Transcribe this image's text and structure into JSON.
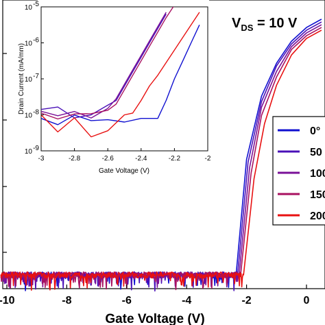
{
  "chart_data": [
    {
      "type": "line",
      "panel": "main",
      "xlabel": "Gate Voltage (V)",
      "ylabel": "",
      "xlim": [
        -10,
        0.6
      ],
      "x_ticks": [
        "-10",
        "-8",
        "-6",
        "-4",
        "-2",
        "0"
      ],
      "x_tick_values": [
        -10,
        -8,
        -6,
        -4,
        -2,
        0
      ],
      "annotation": {
        "main": "V",
        "sub": "DS",
        "rest": " = 10 V"
      },
      "legend": {
        "placement": "right",
        "entries": [
          {
            "label": "0°",
            "color": "#1010d0"
          },
          {
            "label": "50",
            "color": "#4a10b8"
          },
          {
            "label": "100",
            "color": "#7a1098"
          },
          {
            "label": "150",
            "color": "#a81060"
          },
          {
            "label": "200",
            "color": "#e81010"
          }
        ]
      },
      "series": [
        {
          "color": "#1010d0",
          "threshold": -2.35,
          "noise_floor": 0.0,
          "x": [
            -10,
            -3,
            -2.6,
            -2.35,
            -2.0,
            -1.5,
            -1.0,
            -0.5,
            0,
            0.5
          ],
          "y_rel": [
            0.03,
            0.03,
            0.03,
            0.03,
            0.45,
            0.68,
            0.8,
            0.88,
            0.93,
            0.96
          ]
        },
        {
          "color": "#4a10b8",
          "threshold": -2.3,
          "x": [
            -10,
            -3,
            -2.6,
            -2.3,
            -1.95,
            -1.5,
            -1.0,
            -0.5,
            0,
            0.5
          ],
          "y_rel": [
            0.03,
            0.03,
            0.03,
            0.03,
            0.44,
            0.66,
            0.79,
            0.87,
            0.92,
            0.95
          ]
        },
        {
          "color": "#7a1098",
          "threshold": -2.25,
          "x": [
            -10,
            -3,
            -2.6,
            -2.25,
            -1.9,
            -1.5,
            -1.0,
            -0.5,
            0,
            0.5
          ],
          "y_rel": [
            0.03,
            0.03,
            0.03,
            0.03,
            0.42,
            0.64,
            0.77,
            0.86,
            0.91,
            0.94
          ]
        },
        {
          "color": "#a81060",
          "threshold": -2.2,
          "x": [
            -10,
            -3,
            -2.6,
            -2.2,
            -1.85,
            -1.5,
            -1.0,
            -0.5,
            0,
            0.5
          ],
          "y_rel": [
            0.03,
            0.03,
            0.03,
            0.03,
            0.4,
            0.61,
            0.75,
            0.85,
            0.9,
            0.93
          ]
        },
        {
          "color": "#e81010",
          "threshold": -2.1,
          "x": [
            -10,
            -3,
            -2.6,
            -2.1,
            -1.75,
            -1.4,
            -1.0,
            -0.5,
            0,
            0.5
          ],
          "y_rel": [
            0.03,
            0.03,
            0.03,
            0.03,
            0.38,
            0.58,
            0.72,
            0.83,
            0.89,
            0.92
          ]
        }
      ]
    },
    {
      "type": "line",
      "panel": "inset",
      "xlabel": "Gate Voltage (V)",
      "ylabel": "Drain Current (mA/mm)",
      "xlim": [
        -3,
        -2
      ],
      "ylim_log10": [
        -9,
        -5
      ],
      "x_ticks": [
        "-3",
        "-2.8",
        "-2.6",
        "-2.4",
        "-2.2",
        "-2"
      ],
      "x_tick_values": [
        -3,
        -2.8,
        -2.6,
        -2.4,
        -2.2,
        -2
      ],
      "y_ticks": [
        {
          "base": "10",
          "exp": "-5",
          "value": -5
        },
        {
          "base": "10",
          "exp": "-6",
          "value": -6
        },
        {
          "base": "10",
          "exp": "-7",
          "value": -7
        },
        {
          "base": "10",
          "exp": "-8",
          "value": -8
        },
        {
          "base": "10",
          "exp": "-9",
          "value": -9
        }
      ],
      "series": [
        {
          "color": "#1010d0",
          "x": [
            -3,
            -2.9,
            -2.8,
            -2.7,
            -2.6,
            -2.5,
            -2.4,
            -2.3,
            -2.25,
            -2.2,
            -2.15,
            -2.1,
            -2.05
          ],
          "log_y": [
            -8.1,
            -8.3,
            -8.1,
            -8.2,
            -8.1,
            -8.2,
            -8.1,
            -8.1,
            -7.6,
            -7.0,
            -6.5,
            -6.0,
            -5.5
          ]
        },
        {
          "color": "#4a10b8",
          "x": [
            -3,
            -2.9,
            -2.8,
            -2.7,
            -2.6,
            -2.55,
            -2.5,
            -2.45,
            -2.4,
            -2.35,
            -2.3,
            -2.25
          ],
          "log_y": [
            -7.85,
            -7.9,
            -7.85,
            -7.9,
            -7.85,
            -7.6,
            -7.2,
            -6.8,
            -6.4,
            -6.0,
            -5.6,
            -5.2
          ]
        },
        {
          "color": "#7a1098",
          "x": [
            -3,
            -2.9,
            -2.8,
            -2.7,
            -2.6,
            -2.55,
            -2.5,
            -2.45,
            -2.4,
            -2.35,
            -2.3,
            -2.25
          ],
          "log_y": [
            -7.9,
            -7.95,
            -7.9,
            -7.95,
            -7.85,
            -7.55,
            -7.15,
            -6.75,
            -6.35,
            -5.95,
            -5.55,
            -5.15
          ]
        },
        {
          "color": "#a81060",
          "x": [
            -3,
            -2.9,
            -2.8,
            -2.7,
            -2.6,
            -2.55,
            -2.5,
            -2.45,
            -2.4,
            -2.35,
            -2.3,
            -2.25,
            -2.2
          ],
          "log_y": [
            -7.95,
            -8.0,
            -7.95,
            -8.0,
            -7.95,
            -7.7,
            -7.3,
            -6.9,
            -6.5,
            -6.1,
            -5.7,
            -5.3,
            -4.95
          ]
        },
        {
          "color": "#e81010",
          "x": [
            -3,
            -2.9,
            -2.8,
            -2.7,
            -2.6,
            -2.5,
            -2.45,
            -2.4,
            -2.35,
            -2.3,
            -2.2,
            -2.1,
            -2.05
          ],
          "log_y": [
            -8.0,
            -8.05,
            -8.0,
            -8.1,
            -8.0,
            -8.0,
            -7.95,
            -7.6,
            -7.2,
            -6.9,
            -6.2,
            -5.5,
            -5.15
          ]
        }
      ]
    }
  ]
}
